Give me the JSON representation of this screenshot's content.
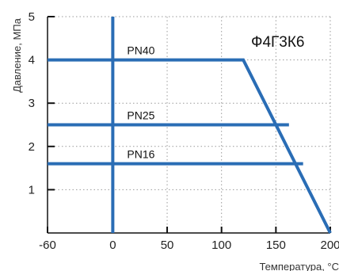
{
  "chart_data": {
    "type": "line",
    "title": "Ф4Г3К6",
    "xlabel": "Температура, °С",
    "ylabel": "Давление, МПа",
    "xlim": [
      -60,
      200
    ],
    "ylim": [
      0,
      5
    ],
    "xticks": [
      -60,
      0,
      50,
      100,
      150,
      200
    ],
    "yticks": [
      1,
      2,
      3,
      4,
      5
    ],
    "grid": true,
    "series": [
      {
        "name": "PN40",
        "points": [
          [
            -60,
            4.0
          ],
          [
            120,
            4.0
          ],
          [
            200,
            0
          ]
        ]
      },
      {
        "name": "PN25",
        "points": [
          [
            -60,
            2.5
          ],
          [
            162,
            2.5
          ]
        ]
      },
      {
        "name": "PN16",
        "points": [
          [
            -60,
            1.6
          ],
          [
            175,
            1.6
          ]
        ]
      },
      {
        "name": "",
        "points": [
          [
            0,
            0
          ],
          [
            0,
            5
          ]
        ]
      }
    ]
  },
  "colors": {
    "line": "#2a6db5",
    "axis": "#111111",
    "grid": "#9a9a9a"
  }
}
